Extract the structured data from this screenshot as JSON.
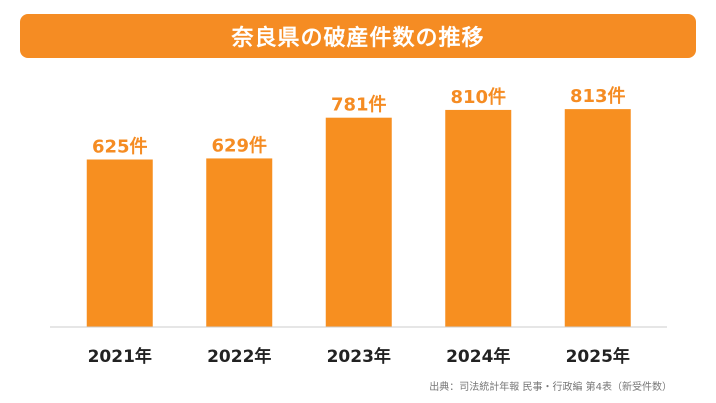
{
  "colors": {
    "accent": "#f58c23",
    "bar": "#f78f20",
    "axis": "#cccccc",
    "label": "#222222"
  },
  "chart_data": {
    "type": "bar",
    "title": "奈良県の破産件数の推移",
    "categories": [
      "2021年",
      "2022年",
      "2023年",
      "2024年",
      "2025年"
    ],
    "values": [
      625,
      629,
      781,
      810,
      813
    ],
    "data_labels": [
      "625件",
      "629件",
      "781件",
      "810件",
      "813件"
    ],
    "xlabel": "",
    "ylabel": "",
    "ylim": [
      0,
      1000
    ],
    "grid": false,
    "legend": "none"
  },
  "footer": {
    "source": "出典：司法統計年報 民事・行政編 第4表（新受件数）"
  }
}
